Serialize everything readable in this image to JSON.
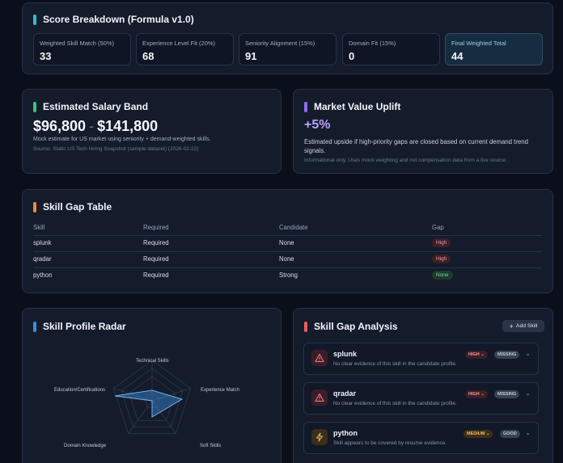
{
  "score_breakdown": {
    "title": "Score Breakdown (Formula v1.0)",
    "items": [
      {
        "label": "Weighted Skill Match (50%)",
        "value": "33"
      },
      {
        "label": "Experience Level Fit (20%)",
        "value": "68"
      },
      {
        "label": "Seniority Alignment (15%)",
        "value": "91"
      },
      {
        "label": "Domain Fit (15%)",
        "value": "0"
      },
      {
        "label": "Final Weighted Total",
        "value": "44"
      }
    ]
  },
  "salary": {
    "title": "Estimated Salary Band",
    "low": "$96,800",
    "separator": "-",
    "high": "$141,800",
    "description": "Mock estimate for US market using seniority + demand-weighted skills.",
    "source": "Source: Static US Tech Hiring Snapshot (sample dataset) (2026-02-22)"
  },
  "uplift": {
    "title": "Market Value Uplift",
    "value": "+5%",
    "description": "Estimated upside if high-priority gaps are closed based on current demand trend signals.",
    "note": "Informational only. Uses mock weighting and not compensation data from a live source."
  },
  "gap_table": {
    "title": "Skill Gap Table",
    "headers": [
      "Skill",
      "Required",
      "Candidate",
      "Gap"
    ],
    "rows": [
      {
        "skill": "splunk",
        "required": "Required",
        "candidate": "None",
        "gap": "High"
      },
      {
        "skill": "qradar",
        "required": "Required",
        "candidate": "None",
        "gap": "High"
      },
      {
        "skill": "python",
        "required": "Required",
        "candidate": "Strong",
        "gap": "None"
      }
    ]
  },
  "radar": {
    "title": "Skill Profile Radar",
    "axes": [
      "Technical Skills",
      "Experience Match",
      "Soft Skills",
      "Domain Knowledge",
      "Education/Certifications"
    ]
  },
  "gap_analysis": {
    "title": "Skill Gap Analysis",
    "add_button": "Add Skill",
    "items": [
      {
        "name": "splunk",
        "desc": "No clear evidence of this skill in the candidate profile.",
        "severity": "HIGH",
        "status": "MISSING"
      },
      {
        "name": "qradar",
        "desc": "No clear evidence of this skill in the candidate profile.",
        "severity": "HIGH",
        "status": "MISSING"
      },
      {
        "name": "python",
        "desc": "Skill appears to be covered by resume evidence.",
        "severity": "MEDIUM",
        "status": "GOOD"
      }
    ]
  },
  "colors": {
    "teal": "#3fb6d4",
    "green": "#3ec27a",
    "purple": "#8b6cf0",
    "orange": "#f28a3c",
    "blue": "#3a8fe0",
    "red": "#ef5a5a"
  }
}
